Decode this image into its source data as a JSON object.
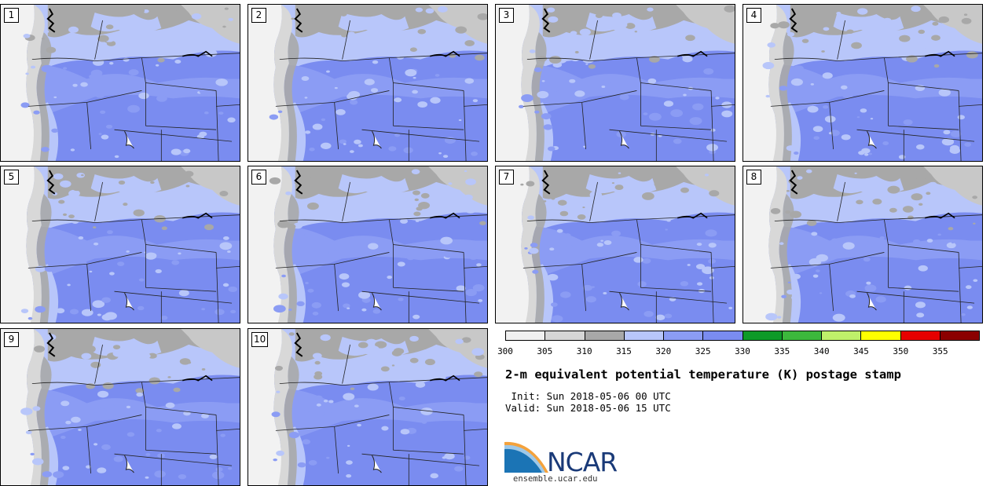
{
  "panels": [
    {
      "label": "1"
    },
    {
      "label": "2"
    },
    {
      "label": "3"
    },
    {
      "label": "4"
    },
    {
      "label": "5"
    },
    {
      "label": "6"
    },
    {
      "label": "7"
    },
    {
      "label": "8"
    },
    {
      "label": "9"
    },
    {
      "label": "10"
    }
  ],
  "colorbar": {
    "colors": [
      "#f0f0f0",
      "#d6d6d6",
      "#a8a8a8",
      "#b8c6fa",
      "#8b9cf4",
      "#7a8cf0",
      "#0e9a28",
      "#3cb83c",
      "#bff06a",
      "#ffff00",
      "#e60000",
      "#8b0000"
    ],
    "ticks": [
      "300",
      "305",
      "310",
      "315",
      "320",
      "325",
      "330",
      "335",
      "340",
      "345",
      "350",
      "355"
    ]
  },
  "map_colors": {
    "ocean": "#f2f2f2",
    "coast_light": "#d8d8d8",
    "gray_310": "#a8a8a8",
    "light_blue_315": "#b8c6fa",
    "blue_320": "#8b9cf4",
    "blue_325": "#7a8cf0"
  },
  "title": "2-m equivalent potential temperature (K) postage stamp",
  "init_line": " Init: Sun 2018-05-06 00 UTC",
  "valid_line": "Valid: Sun 2018-05-06 15 UTC",
  "logo": {
    "text": "NCAR",
    "url": "ensemble.ucar.edu"
  }
}
